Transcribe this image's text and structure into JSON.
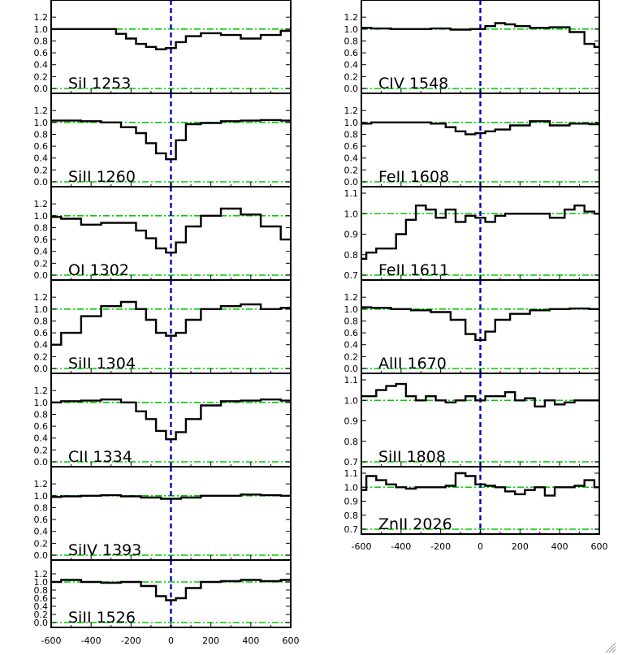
{
  "chart_data": {
    "type": "line",
    "x_tick_labels": [
      "-600",
      "-400",
      "-200",
      "0",
      "200",
      "400",
      "600"
    ],
    "xlim": [
      -600,
      600
    ],
    "colors": {
      "spectrum": "#000000",
      "continuum": "#00cc00",
      "zero_velocity": "#0000cc"
    },
    "columns": [
      {
        "panels": [
          {
            "label": "SiI 1253",
            "ylim": [
              0,
              1.38
            ],
            "yticks": [
              "0.0",
              "0.2",
              "0.4",
              "0.6",
              "0.8",
              "1.0",
              "1.2"
            ],
            "reference_lines": [
              1.0,
              0.0
            ],
            "x": [
              -600,
              -500,
              -400,
              -300,
              -250,
              -200,
              -150,
              -100,
              -50,
              0,
              50,
              100,
              200,
              300,
              400,
              500,
              600
            ],
            "y": [
              1.0,
              1.0,
              1.0,
              1.0,
              0.92,
              0.84,
              0.75,
              0.7,
              0.66,
              0.68,
              0.78,
              0.88,
              0.93,
              0.9,
              0.84,
              0.9,
              0.97
            ]
          },
          {
            "label": "SiII 1260",
            "ylim": [
              0,
              1.38
            ],
            "yticks": [
              "0.0",
              "0.2",
              "0.4",
              "0.6",
              "0.8",
              "1.0",
              "1.2"
            ],
            "reference_lines": [
              1.0,
              0.0
            ],
            "x": [
              -600,
              -500,
              -400,
              -300,
              -200,
              -150,
              -100,
              -50,
              0,
              50,
              100,
              200,
              300,
              400,
              500,
              600
            ],
            "y": [
              1.03,
              1.03,
              1.02,
              1.0,
              0.92,
              0.82,
              0.65,
              0.48,
              0.38,
              0.7,
              0.97,
              0.99,
              1.02,
              1.03,
              1.04,
              1.03
            ]
          },
          {
            "label": "OI 1302",
            "ylim": [
              0,
              1.38
            ],
            "yticks": [
              "0.0",
              "0.2",
              "0.4",
              "0.6",
              "0.8",
              "1.0",
              "1.2"
            ],
            "reference_lines": [
              1.0,
              0.0
            ],
            "x": [
              -600,
              -500,
              -400,
              -300,
              -200,
              -150,
              -100,
              -50,
              0,
              50,
              100,
              200,
              300,
              400,
              500,
              600
            ],
            "y": [
              0.98,
              0.95,
              0.85,
              0.88,
              0.88,
              0.75,
              0.62,
              0.45,
              0.38,
              0.55,
              0.82,
              1.0,
              1.12,
              1.02,
              0.82,
              0.6
            ]
          },
          {
            "label": "SiII 1304",
            "ylim": [
              0,
              1.38
            ],
            "yticks": [
              "0.0",
              "0.2",
              "0.4",
              "0.6",
              "0.8",
              "1.0",
              "1.2"
            ],
            "reference_lines": [
              1.0,
              0.0
            ],
            "x": [
              -600,
              -500,
              -400,
              -300,
              -200,
              -150,
              -100,
              -50,
              0,
              50,
              100,
              200,
              300,
              400,
              500,
              600
            ],
            "y": [
              0.4,
              0.6,
              0.88,
              1.05,
              1.12,
              1.0,
              0.82,
              0.6,
              0.55,
              0.6,
              0.82,
              1.0,
              1.05,
              1.08,
              1.0,
              1.02
            ]
          },
          {
            "label": "CII 1334",
            "ylim": [
              0,
              1.38
            ],
            "yticks": [
              "0.0",
              "0.2",
              "0.4",
              "0.6",
              "0.8",
              "1.0",
              "1.2"
            ],
            "reference_lines": [
              1.0,
              0.0
            ],
            "x": [
              -600,
              -500,
              -400,
              -300,
              -200,
              -150,
              -100,
              -50,
              0,
              50,
              100,
              200,
              300,
              400,
              500,
              600
            ],
            "y": [
              1.0,
              1.02,
              1.03,
              1.05,
              1.0,
              0.85,
              0.72,
              0.52,
              0.38,
              0.5,
              0.72,
              0.95,
              1.02,
              1.03,
              1.05,
              1.03
            ]
          },
          {
            "label": "SiIV 1393",
            "ylim": [
              0,
              1.38
            ],
            "yticks": [
              "0.0",
              "0.2",
              "0.4",
              "0.6",
              "0.8",
              "1.0",
              "1.2"
            ],
            "reference_lines": [
              1.0,
              0.0
            ],
            "x": [
              -600,
              -500,
              -400,
              -300,
              -200,
              -100,
              0,
              100,
              200,
              300,
              400,
              500,
              600
            ],
            "y": [
              0.98,
              0.99,
              1.0,
              1.01,
              0.99,
              0.97,
              0.95,
              0.97,
              1.0,
              1.0,
              1.02,
              1.01,
              1.0
            ]
          },
          {
            "label": "SiII 1526",
            "ylim": [
              0,
              1.38
            ],
            "yticks": [
              "0.0",
              "0.2",
              "0.4",
              "0.6",
              "0.8",
              "1.0",
              "1.2"
            ],
            "reference_lines": [
              1.0,
              0.0
            ],
            "x": [
              -600,
              -500,
              -400,
              -300,
              -200,
              -100,
              -50,
              0,
              50,
              100,
              200,
              300,
              400,
              500,
              600
            ],
            "y": [
              1.0,
              1.05,
              1.0,
              0.98,
              1.0,
              0.9,
              0.65,
              0.55,
              0.6,
              0.85,
              1.0,
              1.02,
              1.05,
              1.02,
              1.05
            ]
          }
        ]
      },
      {
        "panels": [
          {
            "label": "CIV 1548",
            "ylim": [
              0,
              1.38
            ],
            "yticks": [
              "0.0",
              "0.2",
              "0.4",
              "0.6",
              "0.8",
              "1.0",
              "1.2"
            ],
            "reference_lines": [
              1.0,
              0.0
            ],
            "x": [
              -600,
              -500,
              -400,
              -300,
              -200,
              -100,
              0,
              50,
              100,
              150,
              200,
              300,
              400,
              500,
              550,
              600
            ],
            "y": [
              1.02,
              1.01,
              1.0,
              1.0,
              1.01,
              0.99,
              1.0,
              1.05,
              1.1,
              1.08,
              1.05,
              1.02,
              1.03,
              0.95,
              0.75,
              0.7
            ]
          },
          {
            "label": "FeII 1608",
            "ylim": [
              0,
              1.38
            ],
            "yticks": [
              "0.0",
              "0.2",
              "0.4",
              "0.6",
              "0.8",
              "1.0",
              "1.2"
            ],
            "reference_lines": [
              1.0,
              0.0
            ],
            "x": [
              -600,
              -500,
              -400,
              -300,
              -200,
              -150,
              -100,
              -50,
              0,
              50,
              100,
              200,
              300,
              400,
              500,
              600
            ],
            "y": [
              0.98,
              1.0,
              1.0,
              1.0,
              0.98,
              0.92,
              0.85,
              0.8,
              0.82,
              0.85,
              0.88,
              0.95,
              1.02,
              0.95,
              0.98,
              0.97
            ]
          },
          {
            "label": "FeII 1611",
            "ylim": [
              0.7,
              1.1
            ],
            "yticks": [
              "0.7",
              "0.8",
              "0.9",
              "1.0",
              "1.1"
            ],
            "reference_lines": [
              1.0,
              0.7
            ],
            "x": [
              -600,
              -550,
              -500,
              -450,
              -400,
              -350,
              -300,
              -250,
              -200,
              -150,
              -100,
              -50,
              0,
              50,
              100,
              150,
              200,
              300,
              400,
              450,
              500,
              550,
              600
            ],
            "y": [
              0.78,
              0.81,
              0.83,
              0.83,
              0.9,
              0.97,
              1.04,
              1.02,
              0.98,
              1.02,
              0.96,
              0.99,
              0.98,
              0.96,
              0.99,
              1.0,
              1.0,
              1.0,
              0.98,
              1.02,
              1.04,
              1.01,
              1.0
            ]
          },
          {
            "label": "AlII 1670",
            "ylim": [
              0,
              1.38
            ],
            "yticks": [
              "0.0",
              "0.2",
              "0.4",
              "0.6",
              "0.8",
              "1.0",
              "1.2"
            ],
            "reference_lines": [
              1.0,
              0.0
            ],
            "x": [
              -600,
              -500,
              -400,
              -300,
              -200,
              -100,
              -50,
              0,
              50,
              100,
              200,
              300,
              400,
              500,
              600
            ],
            "y": [
              1.03,
              1.02,
              1.0,
              0.98,
              0.95,
              0.82,
              0.58,
              0.48,
              0.62,
              0.82,
              0.92,
              0.98,
              1.0,
              1.01,
              1.0
            ]
          },
          {
            "label": "SiII 1808",
            "ylim": [
              0.7,
              1.1
            ],
            "yticks": [
              "0.7",
              "0.8",
              "0.9",
              "1.0",
              "1.1"
            ],
            "reference_lines": [
              1.0,
              0.7
            ],
            "x": [
              -600,
              -550,
              -500,
              -450,
              -400,
              -350,
              -300,
              -250,
              -200,
              -150,
              -100,
              -50,
              0,
              50,
              100,
              150,
              200,
              250,
              300,
              350,
              400,
              450,
              500,
              550,
              600
            ],
            "y": [
              1.02,
              1.02,
              1.05,
              1.07,
              1.08,
              1.02,
              1.0,
              1.02,
              1.0,
              0.99,
              1.0,
              1.02,
              1.0,
              1.02,
              1.02,
              1.04,
              1.0,
              1.01,
              0.97,
              1.0,
              0.98,
              0.99,
              1.0,
              1.0,
              1.0
            ]
          },
          {
            "label": "ZnII 2026",
            "ylim": [
              0.7,
              1.1
            ],
            "yticks": [
              "0.7",
              "0.8",
              "0.9",
              "1.0",
              "1.1"
            ],
            "reference_lines": [
              1.0,
              0.7
            ],
            "x": [
              -600,
              -550,
              -500,
              -450,
              -400,
              -350,
              -300,
              -250,
              -200,
              -150,
              -100,
              -50,
              0,
              50,
              100,
              150,
              200,
              250,
              300,
              350,
              400,
              450,
              500,
              550,
              600
            ],
            "y": [
              0.98,
              1.08,
              1.05,
              1.02,
              1.0,
              0.99,
              1.0,
              1.0,
              1.0,
              1.01,
              1.1,
              1.08,
              1.02,
              1.01,
              1.0,
              0.97,
              0.95,
              0.98,
              1.0,
              0.94,
              1.0,
              1.0,
              1.01,
              1.05,
              1.0
            ]
          }
        ]
      }
    ]
  }
}
